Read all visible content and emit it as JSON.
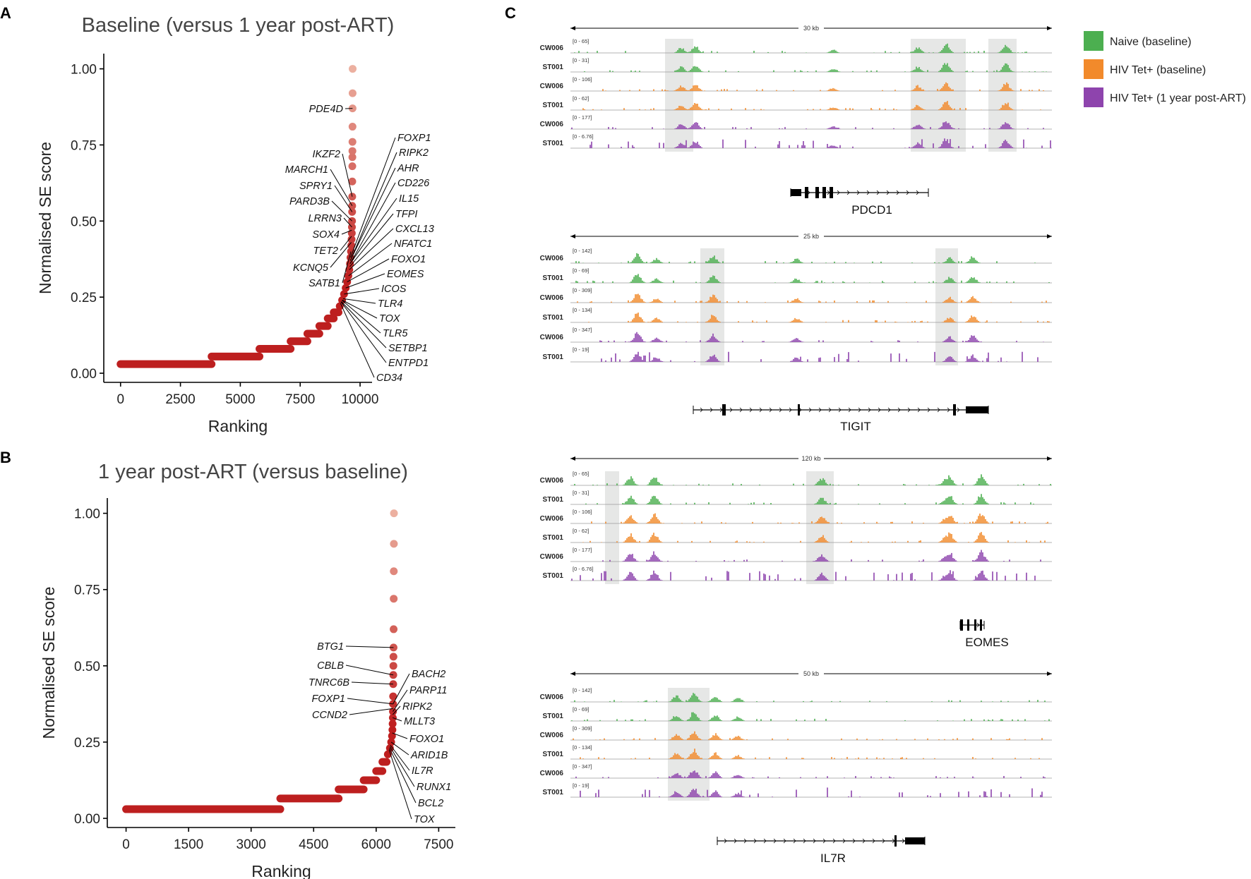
{
  "panelA": {
    "label": "A",
    "chart_data": {
      "type": "scatter",
      "title": "Baseline (versus 1 year post-ART)",
      "xlabel": "Ranking",
      "ylabel": "Normalised SE score",
      "xlim": [
        -700,
        10500
      ],
      "ylim": [
        -0.03,
        1.05
      ],
      "xticks": [
        0,
        2500,
        5000,
        7500,
        10000
      ],
      "xticklabels": [
        "0",
        "2500",
        "5000",
        "7500",
        "10000"
      ],
      "yticks": [
        0,
        0.25,
        0.5,
        0.75,
        1.0
      ],
      "yticklabels": [
        "0.00",
        "0.25",
        "0.50",
        "0.75",
        "1.00"
      ],
      "segments": [
        [
          0,
          3800,
          0.03
        ],
        [
          3800,
          5800,
          0.055
        ],
        [
          5800,
          7100,
          0.08
        ],
        [
          7100,
          7800,
          0.105
        ],
        [
          7800,
          8300,
          0.13
        ],
        [
          8300,
          8650,
          0.155
        ],
        [
          8650,
          8900,
          0.18
        ],
        [
          8900,
          9100,
          0.2
        ]
      ],
      "points": [
        [
          9150,
          0.22
        ],
        [
          9250,
          0.24
        ],
        [
          9330,
          0.26
        ],
        [
          9400,
          0.28
        ],
        [
          9460,
          0.3
        ],
        [
          9510,
          0.32
        ],
        [
          9550,
          0.34
        ],
        [
          9580,
          0.36
        ],
        [
          9600,
          0.38
        ],
        [
          9620,
          0.4
        ],
        [
          9635,
          0.42
        ],
        [
          9645,
          0.44
        ],
        [
          9655,
          0.46
        ],
        [
          9660,
          0.48
        ],
        [
          9665,
          0.5
        ],
        [
          9668,
          0.53
        ],
        [
          9670,
          0.55
        ],
        [
          9672,
          0.58
        ],
        [
          9674,
          0.63
        ],
        [
          9676,
          0.68
        ],
        [
          9678,
          0.71
        ],
        [
          9680,
          0.73
        ],
        [
          9682,
          0.76
        ],
        [
          9684,
          0.81
        ],
        [
          9686,
          0.87
        ],
        [
          9688,
          0.92
        ],
        [
          9690,
          1.0
        ]
      ],
      "annotations": [
        {
          "gene": "PDE4D",
          "x": 9686,
          "y": 0.87,
          "side": "left"
        },
        {
          "gene": "IKZF2",
          "x": 9672,
          "y": 0.58,
          "side": "left"
        },
        {
          "gene": "MARCH1",
          "x": 9670,
          "y": 0.55,
          "side": "left"
        },
        {
          "gene": "SPRY1",
          "x": 9668,
          "y": 0.53,
          "side": "left"
        },
        {
          "gene": "PARD3B",
          "x": 9665,
          "y": 0.5,
          "side": "left"
        },
        {
          "gene": "LRRN3",
          "x": 9660,
          "y": 0.48,
          "side": "left"
        },
        {
          "gene": "SOX4",
          "x": 9655,
          "y": 0.47,
          "side": "left"
        },
        {
          "gene": "TET2",
          "x": 9645,
          "y": 0.45,
          "side": "left"
        },
        {
          "gene": "KCNQ5",
          "x": 9635,
          "y": 0.43,
          "side": "left"
        },
        {
          "gene": "SATB1",
          "x": 9620,
          "y": 0.4,
          "side": "left"
        },
        {
          "gene": "FOXP1",
          "x": 9600,
          "y": 0.38,
          "side": "right"
        },
        {
          "gene": "RIPK2",
          "x": 9595,
          "y": 0.37,
          "side": "right"
        },
        {
          "gene": "AHR",
          "x": 9590,
          "y": 0.37,
          "side": "right"
        },
        {
          "gene": "CD226",
          "x": 9585,
          "y": 0.36,
          "side": "right"
        },
        {
          "gene": "IL15",
          "x": 9580,
          "y": 0.36,
          "side": "right"
        },
        {
          "gene": "TFPI",
          "x": 9570,
          "y": 0.35,
          "side": "right"
        },
        {
          "gene": "CXCL13",
          "x": 9550,
          "y": 0.34,
          "side": "right"
        },
        {
          "gene": "NFATC1",
          "x": 9520,
          "y": 0.32,
          "side": "right"
        },
        {
          "gene": "FOXO1",
          "x": 9460,
          "y": 0.3,
          "side": "right"
        },
        {
          "gene": "EOMES",
          "x": 9400,
          "y": 0.28,
          "side": "right"
        },
        {
          "gene": "ICOS",
          "x": 9330,
          "y": 0.26,
          "side": "right"
        },
        {
          "gene": "TLR4",
          "x": 9290,
          "y": 0.245,
          "side": "right"
        },
        {
          "gene": "TOX",
          "x": 9260,
          "y": 0.24,
          "side": "right"
        },
        {
          "gene": "TLR5",
          "x": 9240,
          "y": 0.24,
          "side": "right"
        },
        {
          "gene": "SETBP1",
          "x": 9220,
          "y": 0.235,
          "side": "right"
        },
        {
          "gene": "ENTPD1",
          "x": 9200,
          "y": 0.235,
          "side": "right"
        },
        {
          "gene": "CD34",
          "x": 9180,
          "y": 0.23,
          "side": "right"
        }
      ]
    }
  },
  "panelB": {
    "label": "B",
    "chart_data": {
      "type": "scatter",
      "title": "1 year post-ART (versus baseline)",
      "xlabel": "Ranking",
      "ylabel": "Normalised SE score",
      "xlim": [
        -450,
        7900
      ],
      "ylim": [
        -0.03,
        1.05
      ],
      "xticks": [
        0,
        1500,
        3000,
        4500,
        6000,
        7500
      ],
      "xticklabels": [
        "0",
        "1500",
        "3000",
        "4500",
        "6000",
        "7500"
      ],
      "yticks": [
        0,
        0.25,
        0.5,
        0.75,
        1.0
      ],
      "yticklabels": [
        "0.00",
        "0.25",
        "0.50",
        "0.75",
        "1.00"
      ],
      "segments": [
        [
          0,
          3700,
          0.03
        ],
        [
          3700,
          5100,
          0.065
        ],
        [
          5100,
          5700,
          0.095
        ],
        [
          5700,
          6000,
          0.125
        ],
        [
          6000,
          6150,
          0.155
        ],
        [
          6150,
          6250,
          0.185
        ]
      ],
      "points": [
        [
          6280,
          0.21
        ],
        [
          6330,
          0.23
        ],
        [
          6360,
          0.25
        ],
        [
          6380,
          0.27
        ],
        [
          6390,
          0.29
        ],
        [
          6395,
          0.31
        ],
        [
          6400,
          0.33
        ],
        [
          6403,
          0.35
        ],
        [
          6405,
          0.375
        ],
        [
          6407,
          0.4
        ],
        [
          6409,
          0.44
        ],
        [
          6411,
          0.47
        ],
        [
          6413,
          0.5
        ],
        [
          6415,
          0.53
        ],
        [
          6417,
          0.56
        ],
        [
          6419,
          0.62
        ],
        [
          6421,
          0.72
        ],
        [
          6423,
          0.81
        ],
        [
          6425,
          0.9
        ],
        [
          6427,
          1.0
        ]
      ],
      "annotations": [
        {
          "gene": "BTG1",
          "x": 6417,
          "y": 0.56,
          "side": "left"
        },
        {
          "gene": "CBLB",
          "x": 6411,
          "y": 0.47,
          "side": "left"
        },
        {
          "gene": "TNRC6B",
          "x": 6409,
          "y": 0.44,
          "side": "left"
        },
        {
          "gene": "FOXP1",
          "x": 6405,
          "y": 0.375,
          "side": "left"
        },
        {
          "gene": "CCND2",
          "x": 6403,
          "y": 0.36,
          "side": "left"
        },
        {
          "gene": "BACH2",
          "x": 6405,
          "y": 0.375,
          "side": "right"
        },
        {
          "gene": "PARP11",
          "x": 6400,
          "y": 0.35,
          "side": "right"
        },
        {
          "gene": "RIPK2",
          "x": 6397,
          "y": 0.34,
          "side": "right"
        },
        {
          "gene": "MLLT3",
          "x": 6395,
          "y": 0.33,
          "side": "right"
        },
        {
          "gene": "FOXO1",
          "x": 6385,
          "y": 0.28,
          "side": "right"
        },
        {
          "gene": "ARID1B",
          "x": 6360,
          "y": 0.25,
          "side": "right"
        },
        {
          "gene": "IL7R",
          "x": 6340,
          "y": 0.24,
          "side": "right"
        },
        {
          "gene": "RUNX1",
          "x": 6330,
          "y": 0.235,
          "side": "right"
        },
        {
          "gene": "BCL2",
          "x": 6320,
          "y": 0.23,
          "side": "right"
        },
        {
          "gene": "TOX",
          "x": 6310,
          "y": 0.225,
          "side": "right"
        }
      ]
    }
  },
  "panelC": {
    "label": "C",
    "legend": [
      {
        "label": "Naive (baseline)",
        "color": "#4caf50"
      },
      {
        "label": "HIV Tet+ (baseline)",
        "color": "#f28a2b"
      },
      {
        "label": "HIV Tet+ (1 year post-ART)",
        "color": "#8e44ad"
      }
    ],
    "loci": [
      {
        "gene": "PDCD1",
        "scale": "30 kb",
        "tracks": [
          {
            "sample": "CW006",
            "range": "[0 - 65]",
            "color": "#4caf50"
          },
          {
            "sample": "ST001",
            "range": "[0 - 31]",
            "color": "#4caf50"
          },
          {
            "sample": "CW006",
            "range": "[0 - 106]",
            "color": "#f28a2b"
          },
          {
            "sample": "ST001",
            "range": "[0 - 62]",
            "color": "#f28a2b"
          },
          {
            "sample": "CW006",
            "range": "[0 - 177]",
            "color": "#8e44ad"
          },
          {
            "sample": "ST001",
            "range": "[0 - 6.76]",
            "color": "#8e44ad"
          }
        ]
      },
      {
        "gene": "TIGIT",
        "scale": "25 kb",
        "tracks": [
          {
            "sample": "CW006",
            "range": "[0 - 142]",
            "color": "#4caf50"
          },
          {
            "sample": "ST001",
            "range": "[0 - 69]",
            "color": "#4caf50"
          },
          {
            "sample": "CW006",
            "range": "[0 - 309]",
            "color": "#f28a2b"
          },
          {
            "sample": "ST001",
            "range": "[0 - 134]",
            "color": "#f28a2b"
          },
          {
            "sample": "CW006",
            "range": "[0 - 347]",
            "color": "#8e44ad"
          },
          {
            "sample": "ST001",
            "range": "[0 - 19]",
            "color": "#8e44ad"
          }
        ]
      },
      {
        "gene": "EOMES",
        "scale": "120 kb",
        "tracks": [
          {
            "sample": "CW006",
            "range": "[0 - 65]",
            "color": "#4caf50"
          },
          {
            "sample": "ST001",
            "range": "[0 - 31]",
            "color": "#4caf50"
          },
          {
            "sample": "CW006",
            "range": "[0 - 106]",
            "color": "#f28a2b"
          },
          {
            "sample": "ST001",
            "range": "[0 - 62]",
            "color": "#f28a2b"
          },
          {
            "sample": "CW006",
            "range": "[0 - 177]",
            "color": "#8e44ad"
          },
          {
            "sample": "ST001",
            "range": "[0 - 6.76]",
            "color": "#8e44ad"
          }
        ]
      },
      {
        "gene": "IL7R",
        "scale": "50 kb",
        "tracks": [
          {
            "sample": "CW006",
            "range": "[0 - 142]",
            "color": "#4caf50"
          },
          {
            "sample": "ST001",
            "range": "[0 - 69]",
            "color": "#4caf50"
          },
          {
            "sample": "CW006",
            "range": "[0 - 309]",
            "color": "#f28a2b"
          },
          {
            "sample": "ST001",
            "range": "[0 - 134]",
            "color": "#f28a2b"
          },
          {
            "sample": "CW006",
            "range": "[0 - 347]",
            "color": "#8e44ad"
          },
          {
            "sample": "ST001",
            "range": "[0 - 19]",
            "color": "#8e44ad"
          }
        ]
      }
    ]
  }
}
